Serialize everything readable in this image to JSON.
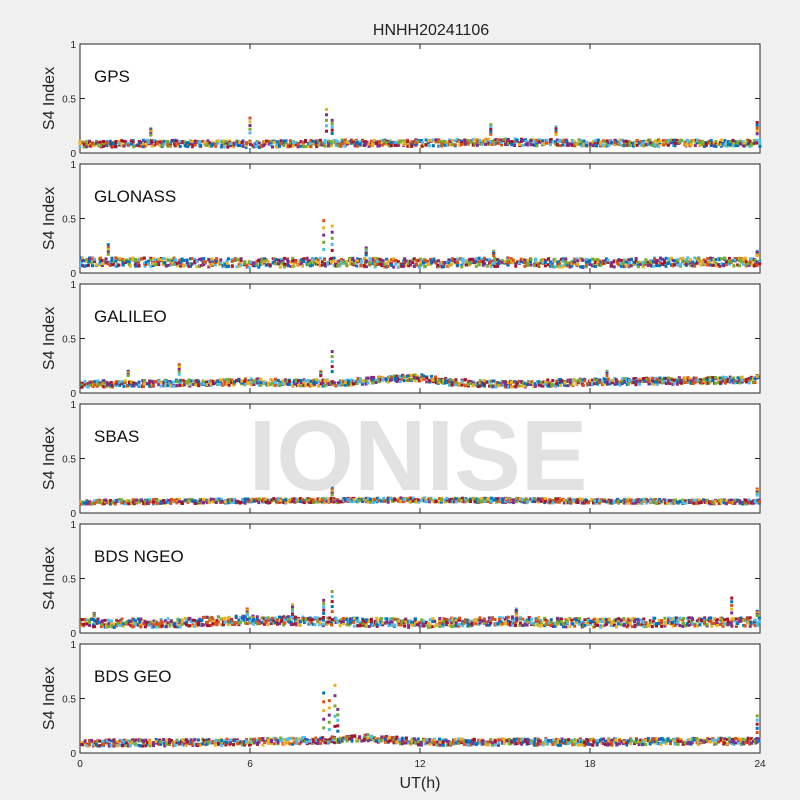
{
  "figure": {
    "title": "HNHH20241106",
    "watermark": "IONISE",
    "xlabel": "UT(h)"
  },
  "palette": [
    "#0072bd",
    "#d95319",
    "#edb120",
    "#7e2f8e",
    "#77ac30",
    "#4dbeee",
    "#a2142f"
  ],
  "chart_data": [
    {
      "type": "scatter",
      "panel": "GPS",
      "ylabel": "S4 Index",
      "xlim": [
        0,
        24
      ],
      "ylim": [
        0,
        1
      ],
      "x_ticks": [
        0,
        6,
        12,
        18,
        24
      ],
      "y_ticks": [
        0,
        0.5,
        1
      ],
      "baseline": [
        [
          0,
          0.08
        ],
        [
          3,
          0.09
        ],
        [
          6,
          0.08
        ],
        [
          9,
          0.09
        ],
        [
          12,
          0.09
        ],
        [
          15,
          0.1
        ],
        [
          18,
          0.09
        ],
        [
          21,
          0.09
        ],
        [
          24,
          0.09
        ]
      ],
      "spread": 0.03,
      "spikes": [
        [
          2.5,
          0.22
        ],
        [
          6.0,
          0.32
        ],
        [
          8.7,
          0.4
        ],
        [
          8.9,
          0.3
        ],
        [
          14.5,
          0.26
        ],
        [
          16.8,
          0.24
        ],
        [
          23.9,
          0.28
        ]
      ]
    },
    {
      "type": "scatter",
      "panel": "GLONASS",
      "ylabel": "S4 Index",
      "xlim": [
        0,
        24
      ],
      "ylim": [
        0,
        1
      ],
      "x_ticks": [
        0,
        6,
        12,
        18,
        24
      ],
      "y_ticks": [
        0,
        0.5,
        1
      ],
      "baseline": [
        [
          0,
          0.1
        ],
        [
          3,
          0.1
        ],
        [
          6,
          0.09
        ],
        [
          9,
          0.1
        ],
        [
          12,
          0.09
        ],
        [
          15,
          0.1
        ],
        [
          18,
          0.09
        ],
        [
          21,
          0.1
        ],
        [
          24,
          0.1
        ]
      ],
      "spread": 0.04,
      "spikes": [
        [
          1.0,
          0.26
        ],
        [
          8.6,
          0.48
        ],
        [
          8.9,
          0.43
        ],
        [
          10.1,
          0.23
        ],
        [
          14.6,
          0.2
        ],
        [
          23.9,
          0.2
        ]
      ]
    },
    {
      "type": "scatter",
      "panel": "GALILEO",
      "ylabel": "S4 Index",
      "xlim": [
        0,
        24
      ],
      "ylim": [
        0,
        1
      ],
      "x_ticks": [
        0,
        6,
        12,
        18,
        24
      ],
      "y_ticks": [
        0,
        0.5,
        1
      ],
      "baseline": [
        [
          0,
          0.08
        ],
        [
          3,
          0.09
        ],
        [
          6,
          0.1
        ],
        [
          9,
          0.09
        ],
        [
          11,
          0.13
        ],
        [
          12,
          0.14
        ],
        [
          13,
          0.1
        ],
        [
          15,
          0.08
        ],
        [
          18,
          0.1
        ],
        [
          21,
          0.11
        ],
        [
          24,
          0.12
        ]
      ],
      "spread": 0.03,
      "spikes": [
        [
          1.7,
          0.2
        ],
        [
          3.5,
          0.26
        ],
        [
          8.5,
          0.2
        ],
        [
          8.9,
          0.38
        ],
        [
          18.6,
          0.2
        ],
        [
          23.9,
          0.16
        ]
      ]
    },
    {
      "type": "scatter",
      "panel": "SBAS",
      "ylabel": "S4 Index",
      "xlim": [
        0,
        24
      ],
      "ylim": [
        0,
        1
      ],
      "x_ticks": [
        0,
        6,
        12,
        18,
        24
      ],
      "y_ticks": [
        0,
        0.5,
        1
      ],
      "baseline": [
        [
          0,
          0.1
        ],
        [
          6,
          0.11
        ],
        [
          12,
          0.12
        ],
        [
          18,
          0.11
        ],
        [
          24,
          0.1
        ]
      ],
      "spread": 0.02,
      "spikes": [
        [
          8.9,
          0.23
        ],
        [
          23.9,
          0.22
        ]
      ]
    },
    {
      "type": "scatter",
      "panel": "BDS NGEO",
      "ylabel": "S4 Index",
      "xlim": [
        0,
        24
      ],
      "ylim": [
        0,
        1
      ],
      "x_ticks": [
        0,
        6,
        12,
        18,
        24
      ],
      "y_ticks": [
        0,
        0.5,
        1
      ],
      "baseline": [
        [
          0,
          0.09
        ],
        [
          3,
          0.09
        ],
        [
          6,
          0.12
        ],
        [
          9,
          0.1
        ],
        [
          12,
          0.09
        ],
        [
          15,
          0.11
        ],
        [
          18,
          0.09
        ],
        [
          21,
          0.1
        ],
        [
          24,
          0.1
        ]
      ],
      "spread": 0.04,
      "spikes": [
        [
          0.5,
          0.18
        ],
        [
          5.9,
          0.22
        ],
        [
          7.5,
          0.26
        ],
        [
          8.6,
          0.3
        ],
        [
          8.9,
          0.38
        ],
        [
          15.4,
          0.22
        ],
        [
          23.0,
          0.32
        ],
        [
          23.9,
          0.2
        ]
      ]
    },
    {
      "type": "scatter",
      "panel": "BDS GEO",
      "ylabel": "S4 Index",
      "xlim": [
        0,
        24
      ],
      "ylim": [
        0,
        1
      ],
      "x_ticks": [
        0,
        6,
        12,
        18,
        24
      ],
      "y_ticks": [
        0,
        0.5,
        1
      ],
      "baseline": [
        [
          0,
          0.09
        ],
        [
          6,
          0.1
        ],
        [
          9,
          0.12
        ],
        [
          10,
          0.14
        ],
        [
          12,
          0.1
        ],
        [
          18,
          0.1
        ],
        [
          24,
          0.11
        ]
      ],
      "spread": 0.03,
      "spikes": [
        [
          8.6,
          0.55
        ],
        [
          8.8,
          0.48
        ],
        [
          9.0,
          0.62
        ],
        [
          9.1,
          0.4
        ],
        [
          23.9,
          0.34
        ]
      ]
    }
  ]
}
